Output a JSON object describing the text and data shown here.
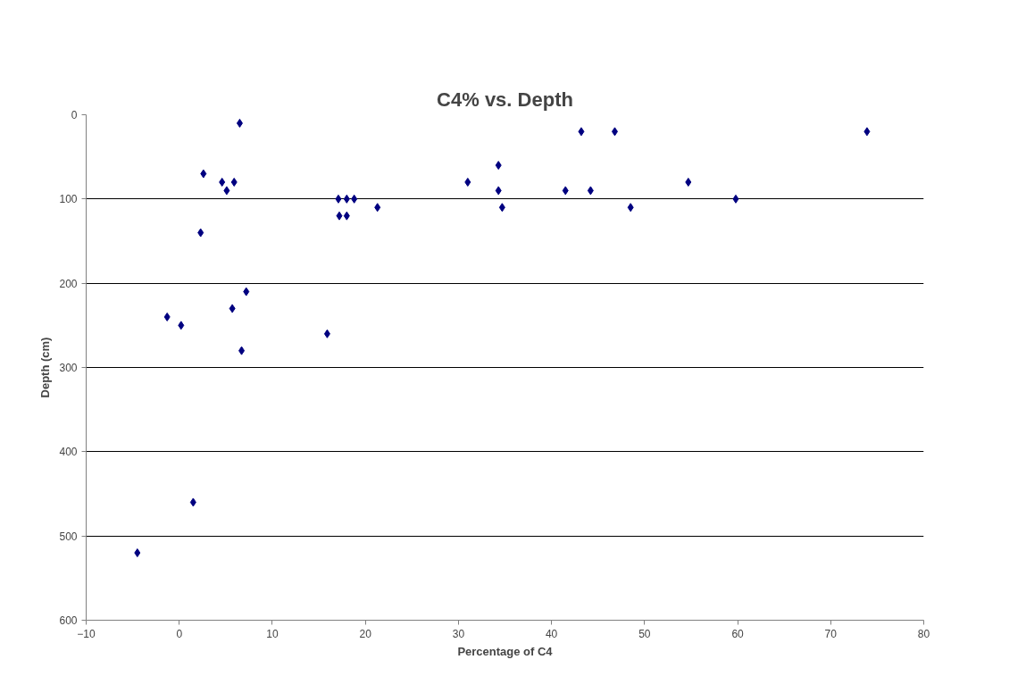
{
  "chart_data": {
    "type": "scatter",
    "title": "C4% vs. Depth",
    "xlabel": "Percentage of C4",
    "ylabel": "Depth (cm)",
    "xlim": [
      -10,
      80
    ],
    "xticks": [
      -10,
      0,
      10,
      20,
      30,
      40,
      50,
      60,
      70,
      80
    ],
    "ylim": [
      600,
      0
    ],
    "yticks": [
      0,
      100,
      200,
      300,
      400,
      500,
      600
    ],
    "grid": "y",
    "marker": "diamond",
    "series": [
      {
        "color": "#000080",
        "x": [
          6.5,
          -4.5,
          1.5,
          -1.3,
          0.2,
          5.7,
          7.2,
          6.7,
          15.9,
          2.3,
          2.6,
          4.6,
          5.1,
          5.9,
          17.1,
          18.0,
          18.8,
          17.2,
          18.0,
          21.3,
          31.0,
          34.3,
          34.3,
          34.7,
          41.5,
          44.2,
          43.2,
          46.8,
          48.5,
          54.7,
          59.8,
          73.9
        ],
        "values": [
          10,
          520,
          460,
          240,
          250,
          230,
          210,
          280,
          260,
          140,
          70,
          80,
          90,
          80,
          100,
          100,
          100,
          120,
          120,
          110,
          80,
          60,
          90,
          110,
          90,
          90,
          20,
          20,
          110,
          80,
          100,
          20
        ]
      }
    ]
  }
}
